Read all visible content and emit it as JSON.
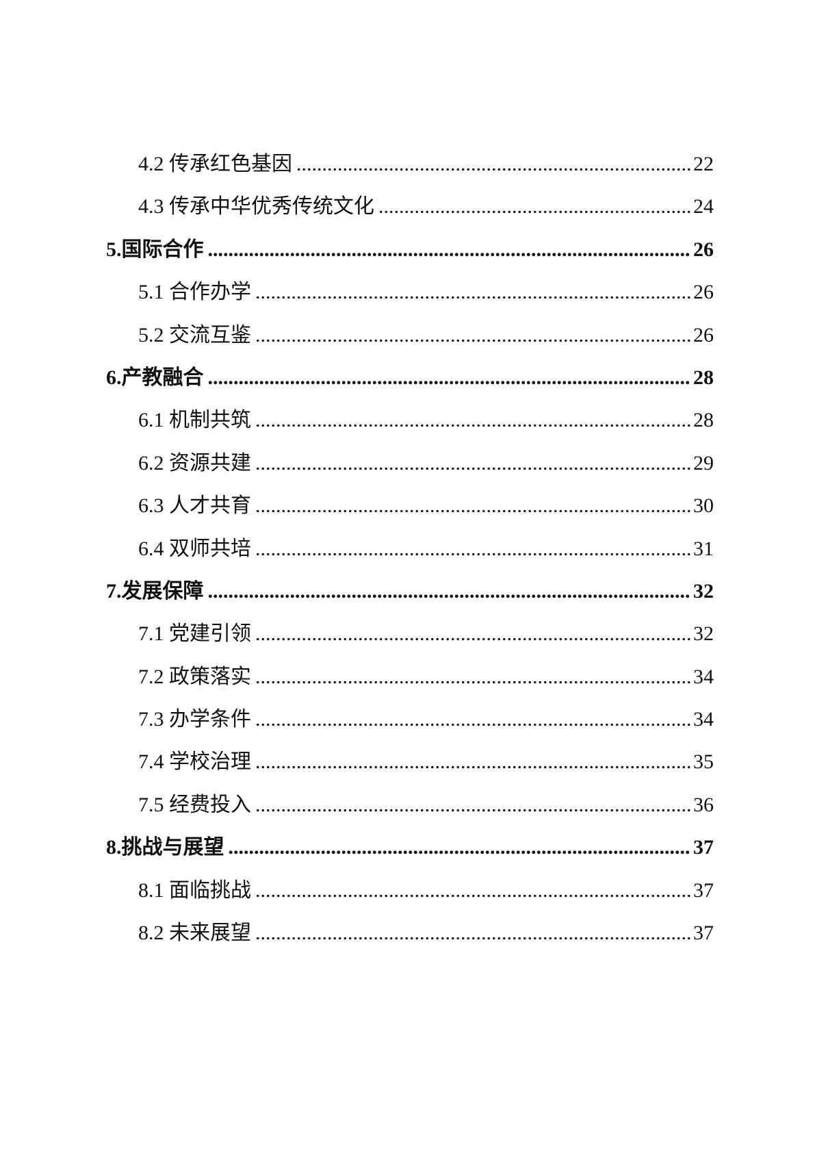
{
  "page": {
    "background_color": "#ffffff",
    "text_color": "#111111"
  },
  "toc": {
    "dot_leader_char": ".",
    "entries": [
      {
        "level": 2,
        "label": "4.2 传承红色基因",
        "page": "22"
      },
      {
        "level": 2,
        "label": "4.3 传承中华优秀传统文化",
        "page": "24"
      },
      {
        "level": 1,
        "label": "5.国际合作",
        "page": "26"
      },
      {
        "level": 2,
        "label": "5.1 合作办学",
        "page": "26"
      },
      {
        "level": 2,
        "label": "5.2 交流互鉴",
        "page": "26"
      },
      {
        "level": 1,
        "label": "6.产教融合",
        "page": "28"
      },
      {
        "level": 2,
        "label": "6.1 机制共筑",
        "page": "28"
      },
      {
        "level": 2,
        "label": "6.2 资源共建",
        "page": "29"
      },
      {
        "level": 2,
        "label": "6.3 人才共育",
        "page": "30"
      },
      {
        "level": 2,
        "label": "6.4 双师共培",
        "page": "31"
      },
      {
        "level": 1,
        "label": "7.发展保障",
        "page": "32"
      },
      {
        "level": 2,
        "label": "7.1 党建引领",
        "page": "32"
      },
      {
        "level": 2,
        "label": "7.2 政策落实",
        "page": "34"
      },
      {
        "level": 2,
        "label": "7.3 办学条件",
        "page": "34"
      },
      {
        "level": 2,
        "label": "7.4 学校治理",
        "page": "35"
      },
      {
        "level": 2,
        "label": "7.5 经费投入",
        "page": "36"
      },
      {
        "level": 1,
        "label": "8.挑战与展望",
        "page": "37"
      },
      {
        "level": 2,
        "label": "8.1 面临挑战",
        "page": "37"
      },
      {
        "level": 2,
        "label": "8.2 未来展望",
        "page": "37"
      }
    ]
  }
}
